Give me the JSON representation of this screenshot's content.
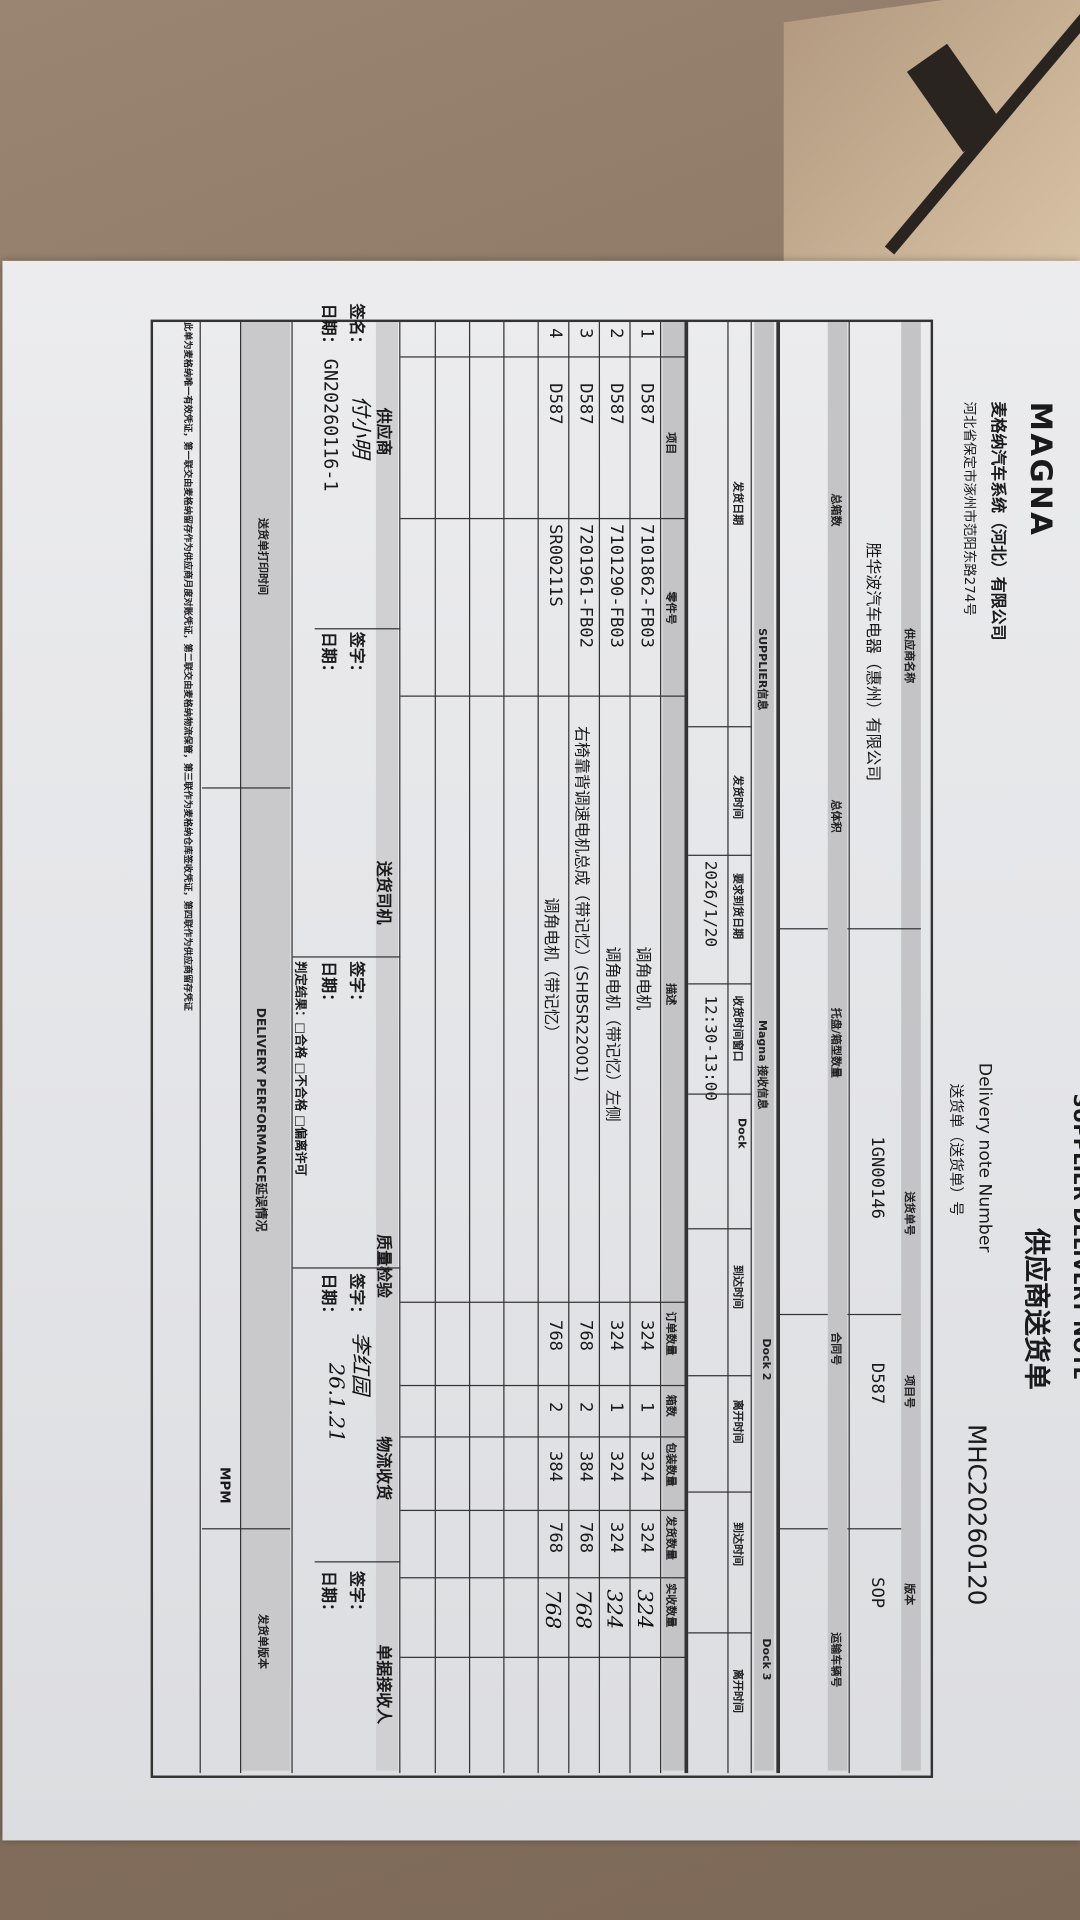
{
  "header": {
    "logo": "MAGNA",
    "company": "麦格纳汽车系统（河北）有限公司",
    "address": "河北省保定市涿州市范阳东路274号",
    "title": "供应商送货单",
    "title_en_partial": "SUPPLIER DELIVERY NOTE",
    "dn_label_en": "Delivery note Number",
    "dn_label_cn": "送货单（送货单）号",
    "dn_number": "MHC20260120"
  },
  "info": {
    "labels_row1": [
      "供应商名称",
      "送货单号",
      "项目号",
      "版本"
    ],
    "values_row1": [
      "胜华波汽车电器（惠州）有限公司",
      "1GN00146",
      "D587",
      "SOP"
    ],
    "labels_row2": [
      "总箱数",
      "总体积",
      "托盘/箱型数量",
      "合同号",
      "运输车辆号"
    ],
    "band_labels": [
      "SUPPLIER信息",
      "Magna 接收信息",
      "Dock 2",
      "Dock 3"
    ],
    "sub_labels": [
      "发货日期",
      "发货时间",
      "要求到货日期",
      "收货时间窗口",
      "Dock",
      "到达时间",
      "离开时间",
      "到达时间",
      "离开时间"
    ],
    "required_date": "2026/1/20",
    "time_window": "12:30-13:00"
  },
  "items": {
    "headers": [
      "项目",
      "零件号",
      "描述",
      "订单数量",
      "箱数",
      "包装数量",
      "发货数量",
      "实收数量"
    ],
    "rows": [
      {
        "no": "1",
        "project": "D587",
        "part": "7101862-FB03",
        "desc": "调角电机",
        "order": "324",
        "boxes": "1",
        "pack": "324",
        "ship": "324",
        "received": "324"
      },
      {
        "no": "2",
        "project": "D587",
        "part": "7101290-FB03",
        "desc": "调角电机（带记忆）左侧",
        "order": "324",
        "boxes": "1",
        "pack": "324",
        "ship": "324",
        "received": "324"
      },
      {
        "no": "3",
        "project": "D587",
        "part": "7201961-FB02",
        "desc": "右椅靠背调速电机总成（带记忆）(SHBSR22001)",
        "order": "768",
        "boxes": "2",
        "pack": "384",
        "ship": "768",
        "received": "768"
      },
      {
        "no": "4",
        "project": "D587",
        "part": "SR00211S",
        "desc": "调角电机（带记忆）",
        "order": "768",
        "boxes": "2",
        "pack": "384",
        "ship": "768",
        "received": "768"
      }
    ]
  },
  "signatures": {
    "sign_label": "签字：",
    "date_label": "日期：",
    "supplier": {
      "title": "供应商",
      "sign_label": "签名：",
      "signature": "付小明",
      "date": "GN20260116-1"
    },
    "driver": {
      "title": "送货司机"
    },
    "quality": {
      "title": "质量检验",
      "result": "判定结果：□合格 □不合格 □偏离许可"
    },
    "logistics": {
      "title": "物流收货",
      "signature": "李红园",
      "date": "26.1.21"
    },
    "receiver": {
      "title": "单据接收人"
    }
  },
  "footer": {
    "print_time_label": "送货单打印时间",
    "performance_label": "DELIVERY PERFORMANCE延误情况",
    "version_label": "发货单版本",
    "mpm": "MPM",
    "note": "此单为麦格纳唯一有效凭证，第一联交由麦格纳留存作为供应商月度对账凭证，第二联交由麦格纳物流保管，第三联作为麦格纳仓库签收凭证，第四联作为供应商留存凭证"
  }
}
